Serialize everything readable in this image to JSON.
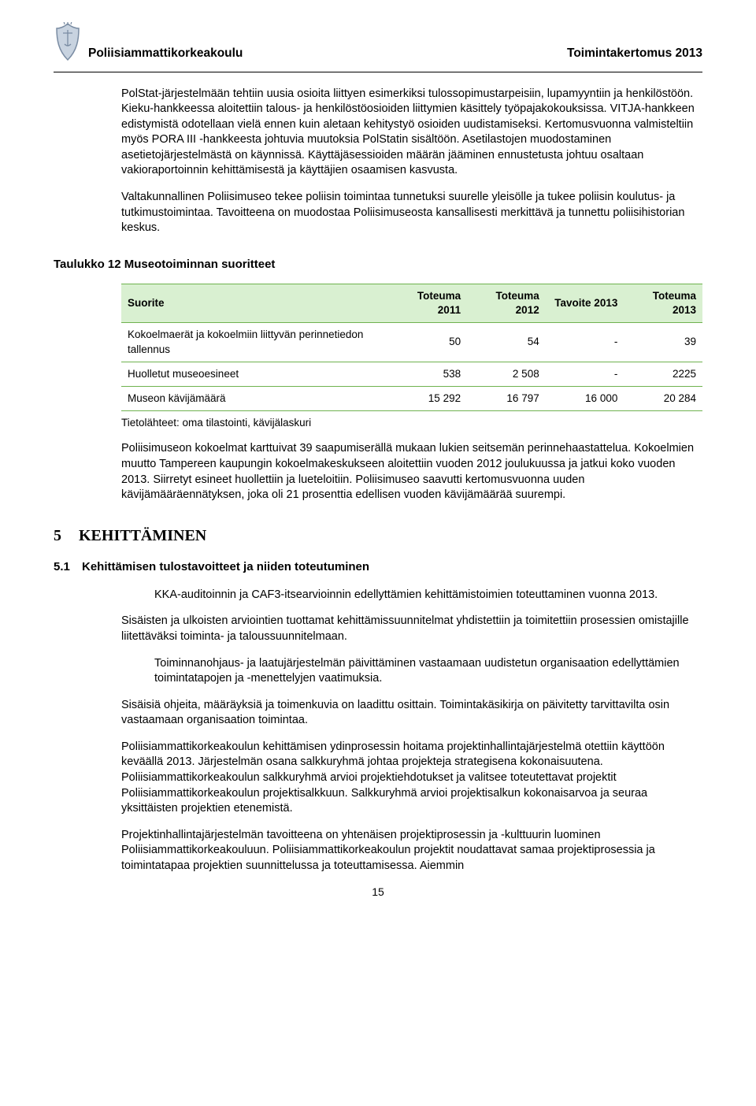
{
  "header": {
    "org": "Poliisiammattikorkeakoulu",
    "docTitle": "Toimintakertomus 2013"
  },
  "logo": {
    "stroke": "#7a8ca3",
    "fill": "#c8d3e0"
  },
  "paragraphs": {
    "p1": "PolStat-järjestelmään tehtiin uusia osioita liittyen esimerkiksi tulossopimustarpeisiin, lupamyyntiin ja henkilöstöön. Kieku-hankkeessa aloitettiin talous- ja henkilöstöosioiden liittymien käsittely työpajakokouksissa. VITJA-hankkeen edistymistä odotellaan vielä ennen kuin aletaan kehitystyö osioiden uudistamiseksi. Kertomusvuonna valmisteltiin myös PORA III -hankkeesta johtuvia muutoksia PolStatin sisältöön. Asetilastojen muodostaminen asetietojärjestelmästä on käynnissä. Käyttäjäsessioiden määrän jääminen ennustetusta johtuu osaltaan vakioraportoinnin kehittämisestä ja käyttäjien osaamisen kasvusta.",
    "p2": "Valtakunnallinen Poliisimuseo tekee poliisin toimintaa tunnetuksi suurelle yleisölle ja tukee poliisin koulutus- ja tutkimustoimintaa. Tavoitteena on muodostaa Poliisimuseosta kansallisesti merkittävä ja tunnettu poliisihistorian keskus.",
    "p3": "Poliisimuseon kokoelmat karttuivat 39 saapumiserällä mukaan lukien seitsemän perinnehaastattelua. Kokoelmien muutto Tampereen kaupungin kokoelmakeskukseen aloitettiin vuoden 2012 joulukuussa ja jatkui koko vuoden 2013. Siirretyt esineet huollettiin ja lueteloitiin. Poliisimuseo saavutti kertomusvuonna uuden kävijämääräennätyksen, joka oli 21 prosenttia edellisen vuoden kävijämäärää suurempi.",
    "p_kka": "KKA-auditoinnin ja CAF3-itsearvioinnin edellyttämien kehittämistoimien toteuttaminen vuonna 2013.",
    "p_sis": "Sisäisten ja ulkoisten arviointien tuottamat kehittämissuunnitelmat yhdistettiin ja toimitettiin prosessien omistajille liitettäväksi toiminta- ja taloussuunnitelmaan.",
    "p_toim": "Toiminnanohjaus- ja laatujärjestelmän päivittäminen vastaamaan uudistetun organisaation edellyttämien toimintatapojen ja -menettelyjen vaatimuksia.",
    "p_sisoh": "Sisäisiä ohjeita, määräyksiä ja toimenkuvia on laadittu osittain. Toimintakäsikirja on päivitetty tarvittavilta osin vastaamaan organisaation toimintaa.",
    "p_proj1": "Poliisiammattikorkeakoulun kehittämisen ydinprosessin hoitama projektinhallintajärjestelmä otettiin käyttöön keväällä 2013. Järjestelmän osana salkkuryhmä johtaa projekteja strategisena kokonaisuutena. Poliisiammattikorkeakoulun salkkuryhmä arvioi projektiehdotukset ja valitsee toteutettavat projektit Poliisiammattikorkeakoulun projektisalkkuun. Salkkuryhmä arvioi projektisalkun kokonaisarvoa ja seuraa yksittäisten projektien etenemistä.",
    "p_proj2": "Projektinhallintajärjestelmän tavoitteena on yhtenäisen projektiprosessin ja -kulttuurin luominen Poliisiammattikorkeakouluun. Poliisiammattikorkeakoulun projektit noudattavat samaa projektiprosessia ja toimintatapaa projektien suunnittelussa ja toteuttamisessa. Aiemmin"
  },
  "table": {
    "caption": "Taulukko 12 Museotoiminnan suoritteet",
    "columns": [
      "Suorite",
      "Toteuma 2011",
      "Toteuma 2012",
      "Tavoite 2013",
      "Toteuma 2013"
    ],
    "rows": [
      {
        "label": "Kokoelmaerät ja kokoelmiin liittyvän perinnetiedon tallennus",
        "v": [
          "50",
          "54",
          "-",
          "39"
        ]
      },
      {
        "label": "Huolletut museoesineet",
        "v": [
          "538",
          "2 508",
          "-",
          "2225"
        ]
      },
      {
        "label": "Museon kävijämäärä",
        "v": [
          "15 292",
          "16 797",
          "16 000",
          "20 284"
        ]
      }
    ],
    "source": "Tietolähteet: oma tilastointi, kävijälaskuri",
    "colors": {
      "header_bg": "#d9f0d1",
      "border": "#6fb24f"
    },
    "col_widths_pct": [
      46,
      13.5,
      13.5,
      13.5,
      13.5
    ]
  },
  "section5": {
    "num": "5",
    "title": "KEHITTÄMINEN",
    "sub1_num": "5.1",
    "sub1_title": "Kehittämisen tulostavoitteet ja niiden toteutuminen"
  },
  "pageNumber": "15"
}
